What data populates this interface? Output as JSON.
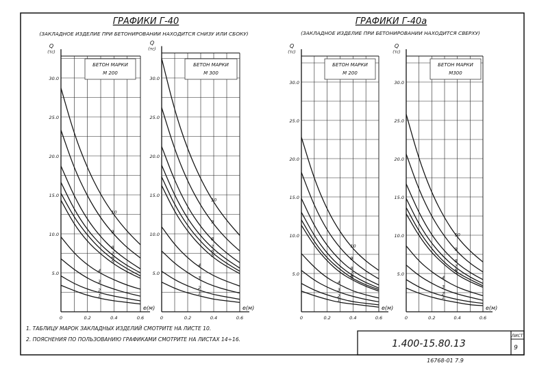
{
  "sheet": {
    "left_title": "ГРАФИКИ Г-40",
    "left_subtitle": "(ЗАКЛАДНОЕ ИЗДЕЛИЕ ПРИ БЕТОНИРОВАНИИ НАХОДИТСЯ СНИЗУ ИЛИ СБОКУ)",
    "right_title": "ГРАФИКИ Г-40а",
    "right_subtitle": "(ЗАКЛАДНОЕ ИЗДЕЛИЕ ПРИ БЕТОНИРОВАНИИ НАХОДИТСЯ СВЕРХУ)",
    "notes": [
      "1. ТАБЛИЦУ МАРОК ЗАКЛАДНЫХ ИЗДЕЛИЙ СМОТРИТЕ НА ЛИСТЕ 10.",
      "2. ПОЯСНЕНИЯ ПО ПОЛЬЗОВАНИЮ ГРАФИКАМИ СМОТРИТЕ НА ЛИСТАХ 14÷16."
    ],
    "doc_code": "1.400-15.80.13",
    "sheet_label": "ЛИСТ",
    "sheet_number": "9",
    "stamp": "16768-01  7.9",
    "y_axis_label": "Q",
    "y_axis_unit": "(тс)",
    "x_axis_label": "е(м)"
  },
  "chart_data": [
    {
      "type": "line",
      "title": "БЕТОН МАРКИ М 200",
      "group": "ГРАФИКИ Г-40",
      "xlabel": "е(м)",
      "ylabel": "Q (тс)",
      "xlim": [
        0,
        0.6
      ],
      "ylim": [
        0,
        30
      ],
      "xticks": [
        "0",
        "0.2",
        "0.4",
        "0.6"
      ],
      "yticks": [
        "5.0",
        "10.0",
        "15.0",
        "20.0",
        "25.0",
        "30.0"
      ],
      "grid": true,
      "series": [
        {
          "name": "10",
          "x": [
            0,
            0.1,
            0.2,
            0.3,
            0.4,
            0.5,
            0.6
          ],
          "y": [
            28.7,
            22.8,
            18.4,
            15.0,
            12.4,
            10.3,
            8.6
          ]
        },
        {
          "name": "9",
          "x": [
            0,
            0.1,
            0.2,
            0.3,
            0.4,
            0.5,
            0.6
          ],
          "y": [
            23.3,
            18.4,
            14.8,
            12.0,
            9.9,
            8.2,
            6.9
          ]
        },
        {
          "name": "8",
          "x": [
            0,
            0.1,
            0.2,
            0.3,
            0.4,
            0.5,
            0.6
          ],
          "y": [
            18.7,
            14.8,
            11.8,
            9.6,
            7.9,
            6.6,
            5.5
          ]
        },
        {
          "name": "7",
          "x": [
            0,
            0.1,
            0.2,
            0.3,
            0.4,
            0.5,
            0.6
          ],
          "y": [
            16.6,
            13.1,
            10.5,
            8.6,
            7.1,
            5.9,
            5.0
          ]
        },
        {
          "name": "6",
          "x": [
            0,
            0.1,
            0.2,
            0.3,
            0.4,
            0.5,
            0.6
          ],
          "y": [
            15.2,
            12.1,
            9.8,
            8.0,
            6.6,
            5.5,
            4.6
          ]
        },
        {
          "name": "5",
          "x": [
            0,
            0.1,
            0.2,
            0.3,
            0.4,
            0.5,
            0.6
          ],
          "y": [
            14.3,
            11.2,
            9.0,
            7.4,
            6.1,
            5.1,
            4.3
          ]
        },
        {
          "name": "4",
          "x": [
            0,
            0.1,
            0.2,
            0.3,
            0.4,
            0.5,
            0.6
          ],
          "y": [
            9.6,
            7.5,
            6.0,
            4.9,
            4.1,
            3.4,
            2.9
          ]
        },
        {
          "name": "3",
          "x": [
            0,
            0.1,
            0.2,
            0.3,
            0.4,
            0.5,
            0.6
          ],
          "y": [
            6.8,
            5.4,
            4.3,
            3.5,
            2.9,
            2.4,
            2.0
          ]
        },
        {
          "name": "2",
          "x": [
            0,
            0.1,
            0.2,
            0.3,
            0.4,
            0.5,
            0.6
          ],
          "y": [
            4.6,
            3.6,
            2.9,
            2.4,
            2.0,
            1.7,
            1.4
          ]
        },
        {
          "name": "1",
          "x": [
            0,
            0.1,
            0.2,
            0.3,
            0.4,
            0.5,
            0.6
          ],
          "y": [
            3.4,
            2.7,
            2.1,
            1.7,
            1.4,
            1.2,
            1.0
          ]
        }
      ]
    },
    {
      "type": "line",
      "title": "БЕТОН МАРКИ М 300",
      "group": "ГРАФИКИ Г-40",
      "xlabel": "е(м)",
      "ylabel": "Q (тс)",
      "xlim": [
        0,
        0.6
      ],
      "ylim": [
        0,
        32.5
      ],
      "xticks": [
        "0",
        "0.2",
        "0.4",
        "0.6"
      ],
      "yticks": [
        "5.0",
        "10.0",
        "15.0",
        "20.0",
        "25.0",
        "30.0"
      ],
      "grid": true,
      "series": [
        {
          "name": "10",
          "x": [
            0,
            0.1,
            0.2,
            0.3,
            0.4,
            0.5,
            0.6
          ],
          "y": [
            32.5,
            25.8,
            20.8,
            17.0,
            14.0,
            11.7,
            9.8
          ]
        },
        {
          "name": "9",
          "x": [
            0,
            0.1,
            0.2,
            0.3,
            0.4,
            0.5,
            0.6
          ],
          "y": [
            26.2,
            20.8,
            16.7,
            13.6,
            11.2,
            9.3,
            7.8
          ]
        },
        {
          "name": "8",
          "x": [
            0,
            0.1,
            0.2,
            0.3,
            0.4,
            0.5,
            0.6
          ],
          "y": [
            21.2,
            16.8,
            13.4,
            10.9,
            9.0,
            7.5,
            6.3
          ]
        },
        {
          "name": "7",
          "x": [
            0,
            0.1,
            0.2,
            0.3,
            0.4,
            0.5,
            0.6
          ],
          "y": [
            18.8,
            14.9,
            11.9,
            9.7,
            8.0,
            6.7,
            5.6
          ]
        },
        {
          "name": "6",
          "x": [
            0,
            0.1,
            0.2,
            0.3,
            0.4,
            0.5,
            0.6
          ],
          "y": [
            17.3,
            13.7,
            11.0,
            9.0,
            7.4,
            6.2,
            5.2
          ]
        },
        {
          "name": "5",
          "x": [
            0,
            0.1,
            0.2,
            0.3,
            0.4,
            0.5,
            0.6
          ],
          "y": [
            16.2,
            12.8,
            10.3,
            8.4,
            6.9,
            5.8,
            4.9
          ]
        },
        {
          "name": "4",
          "x": [
            0,
            0.1,
            0.2,
            0.3,
            0.4,
            0.5,
            0.6
          ],
          "y": [
            10.9,
            8.6,
            6.9,
            5.6,
            4.6,
            3.9,
            3.3
          ]
        },
        {
          "name": "3",
          "x": [
            0,
            0.1,
            0.2,
            0.3,
            0.4,
            0.5,
            0.6
          ],
          "y": [
            7.8,
            6.2,
            5.0,
            4.0,
            3.3,
            2.8,
            2.4
          ]
        },
        {
          "name": "2",
          "x": [
            0,
            0.1,
            0.2,
            0.3,
            0.4,
            0.5,
            0.6
          ],
          "y": [
            5.2,
            4.1,
            3.3,
            2.7,
            2.2,
            1.9,
            1.6
          ]
        },
        {
          "name": "1",
          "x": [
            0,
            0.1,
            0.2,
            0.3,
            0.4,
            0.5,
            0.6
          ],
          "y": [
            3.8,
            3.0,
            2.4,
            2.0,
            1.6,
            1.4,
            1.2
          ]
        }
      ]
    },
    {
      "type": "line",
      "title": "БЕТОН МАРКИ М 200",
      "group": "ГРАФИКИ Г-40а",
      "xlabel": "е(м)",
      "ylabel": "Q (тс)",
      "xlim": [
        0,
        0.6
      ],
      "ylim": [
        0,
        30
      ],
      "xticks": [
        "0",
        "0.2",
        "0.4",
        "0.6"
      ],
      "yticks": [
        "5.0",
        "10.0",
        "15.0",
        "20.0",
        "25.0",
        "30.0"
      ],
      "grid": true,
      "series": [
        {
          "name": "10",
          "x": [
            0,
            0.1,
            0.2,
            0.3,
            0.4,
            0.5,
            0.6
          ],
          "y": [
            22.8,
            17.3,
            13.3,
            10.4,
            8.2,
            6.6,
            5.4
          ]
        },
        {
          "name": "9",
          "x": [
            0,
            0.1,
            0.2,
            0.3,
            0.4,
            0.5,
            0.6
          ],
          "y": [
            18.2,
            13.8,
            10.6,
            8.3,
            6.6,
            5.3,
            4.3
          ]
        },
        {
          "name": "8",
          "x": [
            0,
            0.1,
            0.2,
            0.3,
            0.4,
            0.5,
            0.6
          ],
          "y": [
            14.8,
            11.2,
            8.6,
            6.7,
            5.3,
            4.3,
            3.5
          ]
        },
        {
          "name": "7",
          "x": [
            0,
            0.1,
            0.2,
            0.3,
            0.4,
            0.5,
            0.6
          ],
          "y": [
            13.0,
            9.9,
            7.6,
            5.9,
            4.7,
            3.8,
            3.1
          ]
        },
        {
          "name": "6",
          "x": [
            0,
            0.1,
            0.2,
            0.3,
            0.4,
            0.5,
            0.6
          ],
          "y": [
            12.0,
            9.1,
            7.0,
            5.5,
            4.3,
            3.5,
            2.9
          ]
        },
        {
          "name": "5",
          "x": [
            0,
            0.1,
            0.2,
            0.3,
            0.4,
            0.5,
            0.6
          ],
          "y": [
            11.3,
            8.6,
            6.6,
            5.1,
            4.1,
            3.3,
            2.7
          ]
        },
        {
          "name": "4",
          "x": [
            0,
            0.1,
            0.2,
            0.3,
            0.4,
            0.5,
            0.6
          ],
          "y": [
            7.6,
            5.8,
            4.4,
            3.5,
            2.7,
            2.2,
            1.8
          ]
        },
        {
          "name": "3",
          "x": [
            0,
            0.1,
            0.2,
            0.3,
            0.4,
            0.5,
            0.6
          ],
          "y": [
            5.4,
            4.1,
            3.2,
            2.5,
            2.0,
            1.6,
            1.3
          ]
        },
        {
          "name": "2",
          "x": [
            0,
            0.1,
            0.2,
            0.3,
            0.4,
            0.5,
            0.6
          ],
          "y": [
            3.7,
            2.8,
            2.2,
            1.7,
            1.3,
            1.1,
            0.9
          ]
        },
        {
          "name": "1",
          "x": [
            0,
            0.1,
            0.2,
            0.3,
            0.4,
            0.5,
            0.6
          ],
          "y": [
            2.7,
            2.1,
            1.6,
            1.2,
            1.0,
            0.8,
            0.6
          ]
        }
      ]
    },
    {
      "type": "line",
      "title": "БЕТОН МАРКИ М300",
      "group": "ГРАФИКИ Г-40а",
      "xlabel": "е(м)",
      "ylabel": "Q (тс)",
      "xlim": [
        0,
        0.6
      ],
      "ylim": [
        0,
        30
      ],
      "xticks": [
        "0",
        "0.2",
        "0.4",
        "0.6"
      ],
      "yticks": [
        "5.0",
        "10.0",
        "15.0",
        "20.0",
        "25.0",
        "30.0"
      ],
      "grid": true,
      "series": [
        {
          "name": "10",
          "x": [
            0,
            0.1,
            0.2,
            0.3,
            0.4,
            0.5,
            0.6
          ],
          "y": [
            25.8,
            19.9,
            15.5,
            12.2,
            9.7,
            7.9,
            6.5
          ]
        },
        {
          "name": "9",
          "x": [
            0,
            0.1,
            0.2,
            0.3,
            0.4,
            0.5,
            0.6
          ],
          "y": [
            20.6,
            15.9,
            12.4,
            9.8,
            7.8,
            6.3,
            5.2
          ]
        },
        {
          "name": "8",
          "x": [
            0,
            0.1,
            0.2,
            0.3,
            0.4,
            0.5,
            0.6
          ],
          "y": [
            16.7,
            12.9,
            10.0,
            7.9,
            6.3,
            5.1,
            4.2
          ]
        },
        {
          "name": "7",
          "x": [
            0,
            0.1,
            0.2,
            0.3,
            0.4,
            0.5,
            0.6
          ],
          "y": [
            14.8,
            11.4,
            8.9,
            7.0,
            5.6,
            4.5,
            3.7
          ]
        },
        {
          "name": "6",
          "x": [
            0,
            0.1,
            0.2,
            0.3,
            0.4,
            0.5,
            0.6
          ],
          "y": [
            13.6,
            10.5,
            8.2,
            6.4,
            5.1,
            4.2,
            3.4
          ]
        },
        {
          "name": "5",
          "x": [
            0,
            0.1,
            0.2,
            0.3,
            0.4,
            0.5,
            0.6
          ],
          "y": [
            12.8,
            9.9,
            7.7,
            6.1,
            4.8,
            3.9,
            3.2
          ]
        },
        {
          "name": "4",
          "x": [
            0,
            0.1,
            0.2,
            0.3,
            0.4,
            0.5,
            0.6
          ],
          "y": [
            8.6,
            6.6,
            5.2,
            4.1,
            3.2,
            2.6,
            2.1
          ]
        },
        {
          "name": "3",
          "x": [
            0,
            0.1,
            0.2,
            0.3,
            0.4,
            0.5,
            0.6
          ],
          "y": [
            6.1,
            4.7,
            3.7,
            2.9,
            2.3,
            1.9,
            1.5
          ]
        },
        {
          "name": "2",
          "x": [
            0,
            0.1,
            0.2,
            0.3,
            0.4,
            0.5,
            0.6
          ],
          "y": [
            4.2,
            3.2,
            2.5,
            2.0,
            1.6,
            1.3,
            1.1
          ]
        },
        {
          "name": "1",
          "x": [
            0,
            0.1,
            0.2,
            0.3,
            0.4,
            0.5,
            0.6
          ],
          "y": [
            3.1,
            2.4,
            1.9,
            1.5,
            1.2,
            0.9,
            0.8
          ]
        }
      ]
    }
  ]
}
